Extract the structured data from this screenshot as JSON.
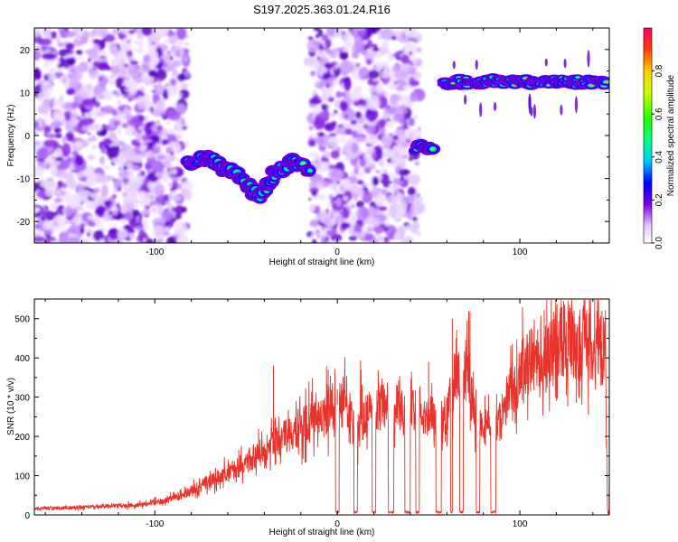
{
  "title": "S197.2025.363.01.24.R16",
  "chart_data": [
    {
      "type": "heatmap",
      "name": "spectrogram",
      "xlabel": "Height of straight line (km)",
      "ylabel": "Frequency (Hz)",
      "xlim": [
        -166,
        149
      ],
      "ylim": [
        -25,
        25
      ],
      "xticks": [
        -100,
        0,
        100
      ],
      "yticks": [
        -20,
        -10,
        0,
        10,
        20
      ],
      "colorbar": {
        "label": "Normalized spectral amplitude",
        "range": [
          0,
          1
        ],
        "ticks": [
          0,
          0.2,
          0.4,
          0.6,
          0.8
        ],
        "tick_labels": [
          "0.0",
          "0.2",
          "0.4",
          "0.6",
          "0.8"
        ]
      },
      "features": [
        {
          "kind": "noise",
          "x": [
            -166,
            -82
          ],
          "y": [
            -25,
            25
          ],
          "amplitude": 0.15
        },
        {
          "kind": "noise",
          "x": [
            -15,
            45
          ],
          "y": [
            -25,
            25
          ],
          "amplitude": 0.12
        },
        {
          "kind": "signal",
          "points": [
            [
              -82,
              -6
            ],
            [
              -70,
              -5
            ],
            [
              -62,
              -8
            ],
            [
              -55,
              -9
            ],
            [
              -48,
              -12
            ],
            [
              -42,
              -14
            ],
            [
              -35,
              -9
            ],
            [
              -25,
              -6
            ],
            [
              -15,
              -8
            ]
          ],
          "amplitude": 0.4
        },
        {
          "kind": "signal",
          "points": [
            [
              42,
              -2.5
            ],
            [
              52,
              -2.5
            ]
          ],
          "amplitude": 0.4
        },
        {
          "kind": "signal",
          "points": [
            [
              58,
              12.5
            ],
            [
              148,
              12.5
            ]
          ],
          "amplitude": 0.85
        }
      ]
    },
    {
      "type": "line",
      "name": "snr",
      "xlabel": "Height of straight line (km)",
      "ylabel": "SNR (10 * v/v)",
      "xlim": [
        -166,
        149
      ],
      "ylim": [
        0,
        550
      ],
      "xticks": [
        -100,
        0,
        100
      ],
      "yticks": [
        0,
        100,
        200,
        300,
        400,
        500
      ],
      "color": "#e8322a",
      "series": [
        {
          "name": "SNR",
          "x": [
            -166,
            -150,
            -130,
            -110,
            -95,
            -85,
            -75,
            -65,
            -55,
            -45,
            -38,
            -30,
            -20,
            -10,
            -3,
            0,
            5,
            10,
            15,
            20,
            25,
            30,
            35,
            40,
            45,
            50,
            55,
            60,
            65,
            70,
            75,
            80,
            85,
            90,
            95,
            100,
            105,
            110,
            115,
            120,
            125,
            130,
            135,
            140,
            145,
            147,
            148,
            149
          ],
          "y": [
            15,
            18,
            22,
            25,
            35,
            50,
            75,
            95,
            120,
            150,
            175,
            195,
            225,
            250,
            275,
            280,
            290,
            200,
            250,
            270,
            280,
            285,
            260,
            270,
            270,
            250,
            240,
            250,
            370,
            380,
            270,
            230,
            200,
            250,
            320,
            360,
            390,
            420,
            430,
            440,
            450,
            440,
            440,
            430,
            420,
            430,
            10,
            5
          ],
          "dropouts": [
            [
              -1,
              1
            ],
            [
              9,
              11
            ],
            [
              19,
              21
            ],
            [
              28,
              31
            ],
            [
              37,
              40
            ],
            [
              43,
              45
            ],
            [
              54,
              57
            ],
            [
              62,
              63
            ],
            [
              67,
              69
            ],
            [
              76,
              78
            ],
            [
              84,
              87
            ]
          ],
          "peaks": [
            [
              -35,
              380
            ],
            [
              -5,
              370
            ],
            [
              0,
              320
            ],
            [
              13,
              370
            ],
            [
              35,
              310
            ],
            [
              50,
              390
            ],
            [
              63,
              500
            ],
            [
              72,
              520
            ],
            [
              124,
              545
            ],
            [
              145,
              520
            ]
          ]
        }
      ]
    }
  ]
}
